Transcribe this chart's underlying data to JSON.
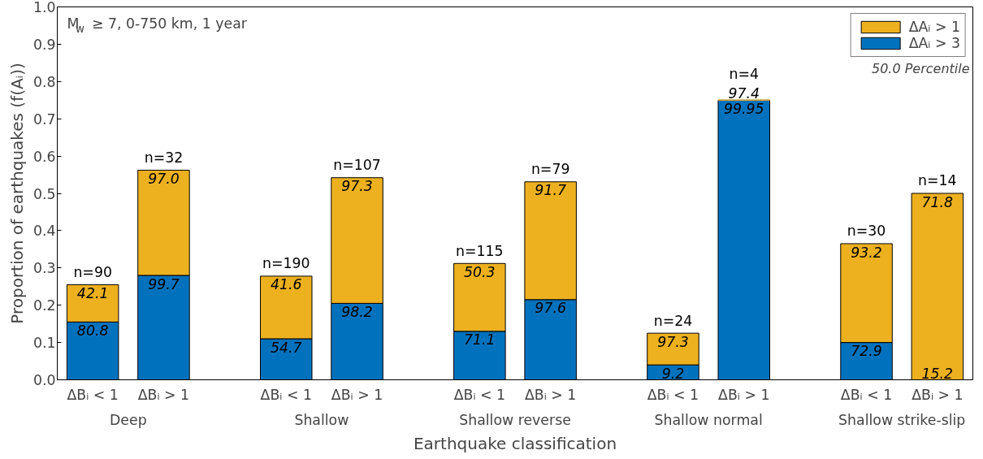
{
  "chart_data": {
    "type": "bar",
    "stacked": true,
    "xlabel": "Earthquake classification",
    "ylabel": "Proportion of earthquakes (f(Aᵢ))",
    "categories": [
      "ΔBᵢ < 1",
      "ΔBᵢ > 1",
      "ΔBᵢ < 1",
      "ΔBᵢ > 1",
      "ΔBᵢ < 1",
      "ΔBᵢ > 1",
      "ΔBᵢ < 1",
      "ΔBᵢ > 1",
      "ΔBᵢ < 1",
      "ΔBᵢ > 1"
    ],
    "series": [
      {
        "name": "ΔAᵢ > 3",
        "color": "#0072bd",
        "values": [
          0.155,
          0.28,
          0.11,
          0.205,
          0.13,
          0.215,
          0.04,
          0.75,
          0.1,
          0
        ]
      },
      {
        "name": "ΔAᵢ > 1",
        "color": "#edb120",
        "values": [
          0.1,
          0.282,
          0.168,
          0.337,
          0.182,
          0.316,
          0.085,
          0,
          0.265,
          0.5
        ]
      }
    ],
    "ylim": [
      0,
      1
    ],
    "yticks": [
      {
        "value": 0,
        "label": "0.0"
      },
      {
        "value": 0.1,
        "label": "0.1"
      },
      {
        "value": 0.2,
        "label": "0.2"
      },
      {
        "value": 0.3,
        "label": "0.3"
      },
      {
        "value": 0.4,
        "label": "0.4"
      },
      {
        "value": 0.5,
        "label": "0.5"
      },
      {
        "value": 0.6,
        "label": "0.6"
      },
      {
        "value": 0.7,
        "label": "0.7"
      },
      {
        "value": 0.8,
        "label": "0.8"
      },
      {
        "value": 0.9,
        "label": "0.9"
      },
      {
        "value": 1,
        "label": "1.0"
      }
    ],
    "annotations": [
      "M$_{w}$ ≥ 7, 0-750 km, 1 year",
      "50.0 Percentile",
      "Deep",
      "Shallow",
      "Shallow reverse",
      "Shallow normal",
      "Shallow strike-slip",
      "80.8",
      "99.7",
      "54.7",
      "98.2",
      "71.1",
      "97.6",
      "9.2",
      "99.95",
      "72.9",
      "15.2",
      "42.1",
      "97.0",
      "41.6",
      "97.3",
      "50.3",
      "91.7",
      "97.3",
      "97.4",
      "93.2",
      "71.8",
      "n=90",
      "n=32",
      "n=190",
      "n=107",
      "n=115",
      "n=79",
      "n=24",
      "n=4",
      "n=30",
      "n=14"
    ],
    "legend": "top right",
    "grid": false
  }
}
